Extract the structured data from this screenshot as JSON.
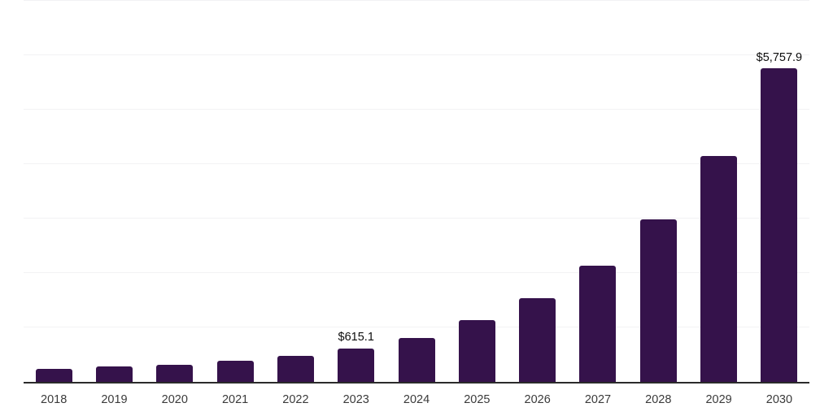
{
  "chart_data": {
    "type": "bar",
    "title": "",
    "xlabel": "",
    "ylabel": "",
    "categories": [
      "2018",
      "2019",
      "2020",
      "2021",
      "2022",
      "2023",
      "2024",
      "2025",
      "2026",
      "2027",
      "2028",
      "2029",
      "2030"
    ],
    "values": [
      235,
      280,
      320,
      390,
      485,
      615.1,
      805,
      1130,
      1540,
      2140,
      2990,
      4150,
      5757.9
    ],
    "value_labels": [
      null,
      null,
      null,
      null,
      null,
      "$615.1",
      null,
      null,
      null,
      null,
      null,
      null,
      "$5,757.9"
    ],
    "ylim": [
      0,
      7000
    ],
    "grid_step": 1000,
    "grid": true,
    "legend": false,
    "y_tick_labels_visible": false,
    "colors": {
      "bar": "#35124B",
      "axis": "#2b2b2b",
      "gridline": "#f2f2f4",
      "value_label": "#0d0d0d",
      "tick_label": "#3a3a3a",
      "background": "#ffffff"
    }
  }
}
